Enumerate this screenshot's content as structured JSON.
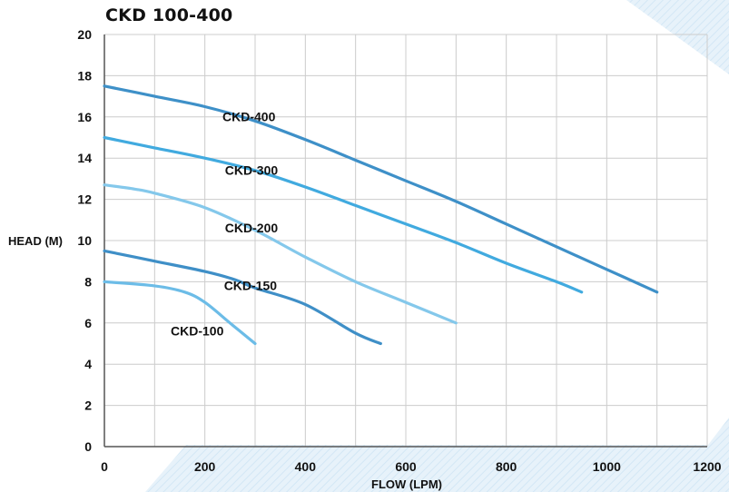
{
  "chart_data": {
    "type": "line",
    "title": "CKD 100-400",
    "xlabel": "FLOW (LPM)",
    "ylabel": "HEAD (M)",
    "xlim": [
      0,
      1200
    ],
    "ylim": [
      0,
      20
    ],
    "x_ticks": [
      "0",
      "200",
      "400",
      "600",
      "800",
      "1000",
      "1200"
    ],
    "y_ticks": [
      "0",
      "2",
      "4",
      "6",
      "8",
      "10",
      "12",
      "14",
      "16",
      "18",
      "20"
    ],
    "grid": true,
    "legend": "inline labels",
    "series": [
      {
        "name": "CKD-400",
        "color": "#3e90c8",
        "label_at": [
          235,
          15.8
        ],
        "points": [
          [
            0,
            17.5
          ],
          [
            100,
            17
          ],
          [
            200,
            16.5
          ],
          [
            300,
            15.8
          ],
          [
            400,
            14.9
          ],
          [
            500,
            13.9
          ],
          [
            600,
            12.9
          ],
          [
            700,
            11.9
          ],
          [
            800,
            10.8
          ],
          [
            900,
            9.7
          ],
          [
            1000,
            8.6
          ],
          [
            1100,
            7.5
          ]
        ]
      },
      {
        "name": "CKD-300",
        "color": "#41aadf",
        "label_at": [
          240,
          13.2
        ],
        "points": [
          [
            0,
            15
          ],
          [
            100,
            14.5
          ],
          [
            200,
            14
          ],
          [
            300,
            13.4
          ],
          [
            400,
            12.6
          ],
          [
            500,
            11.7
          ],
          [
            600,
            10.8
          ],
          [
            700,
            9.9
          ],
          [
            800,
            8.9
          ],
          [
            900,
            8
          ],
          [
            950,
            7.5
          ]
        ]
      },
      {
        "name": "CKD-200",
        "color": "#84c8eb",
        "label_at": [
          240,
          10.4
        ],
        "points": [
          [
            0,
            12.7
          ],
          [
            60,
            12.5
          ],
          [
            100,
            12.3
          ],
          [
            200,
            11.6
          ],
          [
            300,
            10.5
          ],
          [
            400,
            9.2
          ],
          [
            500,
            8
          ],
          [
            600,
            7
          ],
          [
            700,
            6
          ]
        ]
      },
      {
        "name": "CKD-150",
        "color": "#3f8fc7",
        "label_at": [
          238,
          7.6
        ],
        "points": [
          [
            0,
            9.5
          ],
          [
            100,
            9
          ],
          [
            200,
            8.5
          ],
          [
            260,
            8.1
          ],
          [
            300,
            7.7
          ],
          [
            400,
            6.9
          ],
          [
            500,
            5.5
          ],
          [
            550,
            5
          ]
        ]
      },
      {
        "name": "CKD-100",
        "color": "#6cbce7",
        "label_at": [
          132,
          5.4
        ],
        "points": [
          [
            0,
            8
          ],
          [
            100,
            7.8
          ],
          [
            160,
            7.5
          ],
          [
            200,
            7
          ],
          [
            250,
            6
          ],
          [
            300,
            5
          ]
        ]
      }
    ]
  }
}
